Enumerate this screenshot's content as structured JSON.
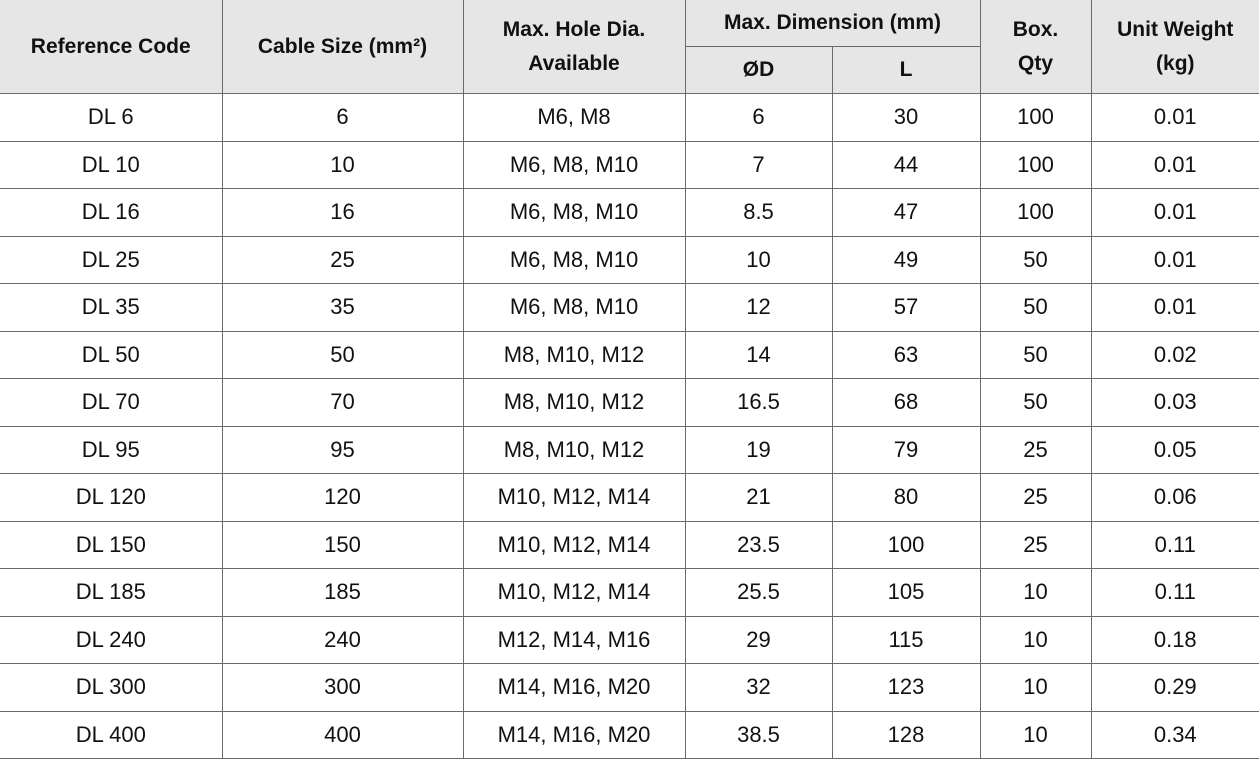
{
  "headers": {
    "reference_code": "Reference Code",
    "cable_size": "Cable Size (mm²)",
    "max_hole_dia": "Max. Hole Dia. Available",
    "max_dimension": "Max. Dimension (mm)",
    "od": "ØD",
    "l": "L",
    "box_qty": "Box. Qty",
    "unit_weight": "Unit Weight (kg)"
  },
  "rows": [
    [
      "DL 6",
      "6",
      "M6, M8",
      "6",
      "30",
      "100",
      "0.01"
    ],
    [
      "DL 10",
      "10",
      "M6, M8, M10",
      "7",
      "44",
      "100",
      "0.01"
    ],
    [
      "DL 16",
      "16",
      "M6, M8, M10",
      "8.5",
      "47",
      "100",
      "0.01"
    ],
    [
      "DL 25",
      "25",
      "M6, M8, M10",
      "10",
      "49",
      "50",
      "0.01"
    ],
    [
      "DL 35",
      "35",
      "M6, M8, M10",
      "12",
      "57",
      "50",
      "0.01"
    ],
    [
      "DL 50",
      "50",
      "M8, M10, M12",
      "14",
      "63",
      "50",
      "0.02"
    ],
    [
      "DL 70",
      "70",
      "M8, M10, M12",
      "16.5",
      "68",
      "50",
      "0.03"
    ],
    [
      "DL 95",
      "95",
      "M8, M10, M12",
      "19",
      "79",
      "25",
      "0.05"
    ],
    [
      "DL 120",
      "120",
      "M10, M12, M14",
      "21",
      "80",
      "25",
      "0.06"
    ],
    [
      "DL 150",
      "150",
      "M10, M12, M14",
      "23.5",
      "100",
      "25",
      "0.11"
    ],
    [
      "DL 185",
      "185",
      "M10, M12, M14",
      "25.5",
      "105",
      "10",
      "0.11"
    ],
    [
      "DL 240",
      "240",
      "M12, M14, M16",
      "29",
      "115",
      "10",
      "0.18"
    ],
    [
      "DL 300",
      "300",
      "M14, M16, M20",
      "32",
      "123",
      "10",
      "0.29"
    ],
    [
      "DL 400",
      "400",
      "M14, M16, M20",
      "38.5",
      "128",
      "10",
      "0.34"
    ]
  ]
}
